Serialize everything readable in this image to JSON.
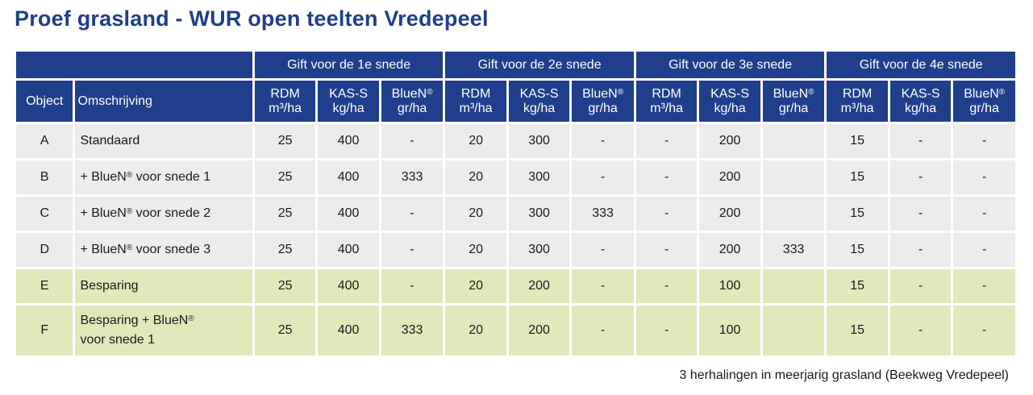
{
  "title": "Proef grasland - WUR open teelten Vredepeel",
  "header": {
    "groups": [
      "Gift voor de 1e snede",
      "Gift voor de 2e snede",
      "Gift voor de 3e snede",
      "Gift voor de 4e snede"
    ],
    "object": "Object",
    "omschrijving": "Omschrijving",
    "rdm": "RDM",
    "rdm_unit": "m³/ha",
    "kas": "KAS-S",
    "kas_unit": "kg/ha",
    "bluen": "BlueN",
    "bluen_sup": "®",
    "bluen_unit": "gr/ha"
  },
  "rows": [
    {
      "object": "A",
      "desc1": "Standaard",
      "sup": "",
      "desc2": "",
      "values": [
        "25",
        "400",
        "-",
        "20",
        "300",
        "-",
        "-",
        "200",
        "",
        "15",
        "-",
        "-"
      ]
    },
    {
      "object": "B",
      "desc1": "+ BlueN",
      "sup": "®",
      "desc2": " voor snede 1",
      "values": [
        "25",
        "400",
        "333",
        "20",
        "300",
        "-",
        "-",
        "200",
        "",
        "15",
        "-",
        "-"
      ]
    },
    {
      "object": "C",
      "desc1": "+ BlueN",
      "sup": "®",
      "desc2": " voor snede 2",
      "values": [
        "25",
        "400",
        "-",
        "20",
        "300",
        "333",
        "-",
        "200",
        "",
        "15",
        "-",
        "-"
      ]
    },
    {
      "object": "D",
      "desc1": "+ BlueN",
      "sup": "®",
      "desc2": " voor snede 3",
      "values": [
        "25",
        "400",
        "-",
        "20",
        "300",
        "-",
        "-",
        "200",
        "333",
        "15",
        "-",
        "-"
      ]
    },
    {
      "object": "E",
      "desc1": "Besparing",
      "sup": "",
      "desc2": "",
      "values": [
        "25",
        "400",
        "-",
        "20",
        "200",
        "-",
        "-",
        "100",
        "",
        "15",
        "-",
        "-"
      ]
    },
    {
      "object": "F",
      "desc1": "Besparing + BlueN",
      "sup": "®",
      "desc2": "voor snede 1",
      "values": [
        "25",
        "400",
        "333",
        "20",
        "200",
        "-",
        "-",
        "100",
        "",
        "15",
        "-",
        "-"
      ]
    }
  ],
  "footer": "3 herhalingen in meerjarig grasland (Beekweg Vredepeel)"
}
